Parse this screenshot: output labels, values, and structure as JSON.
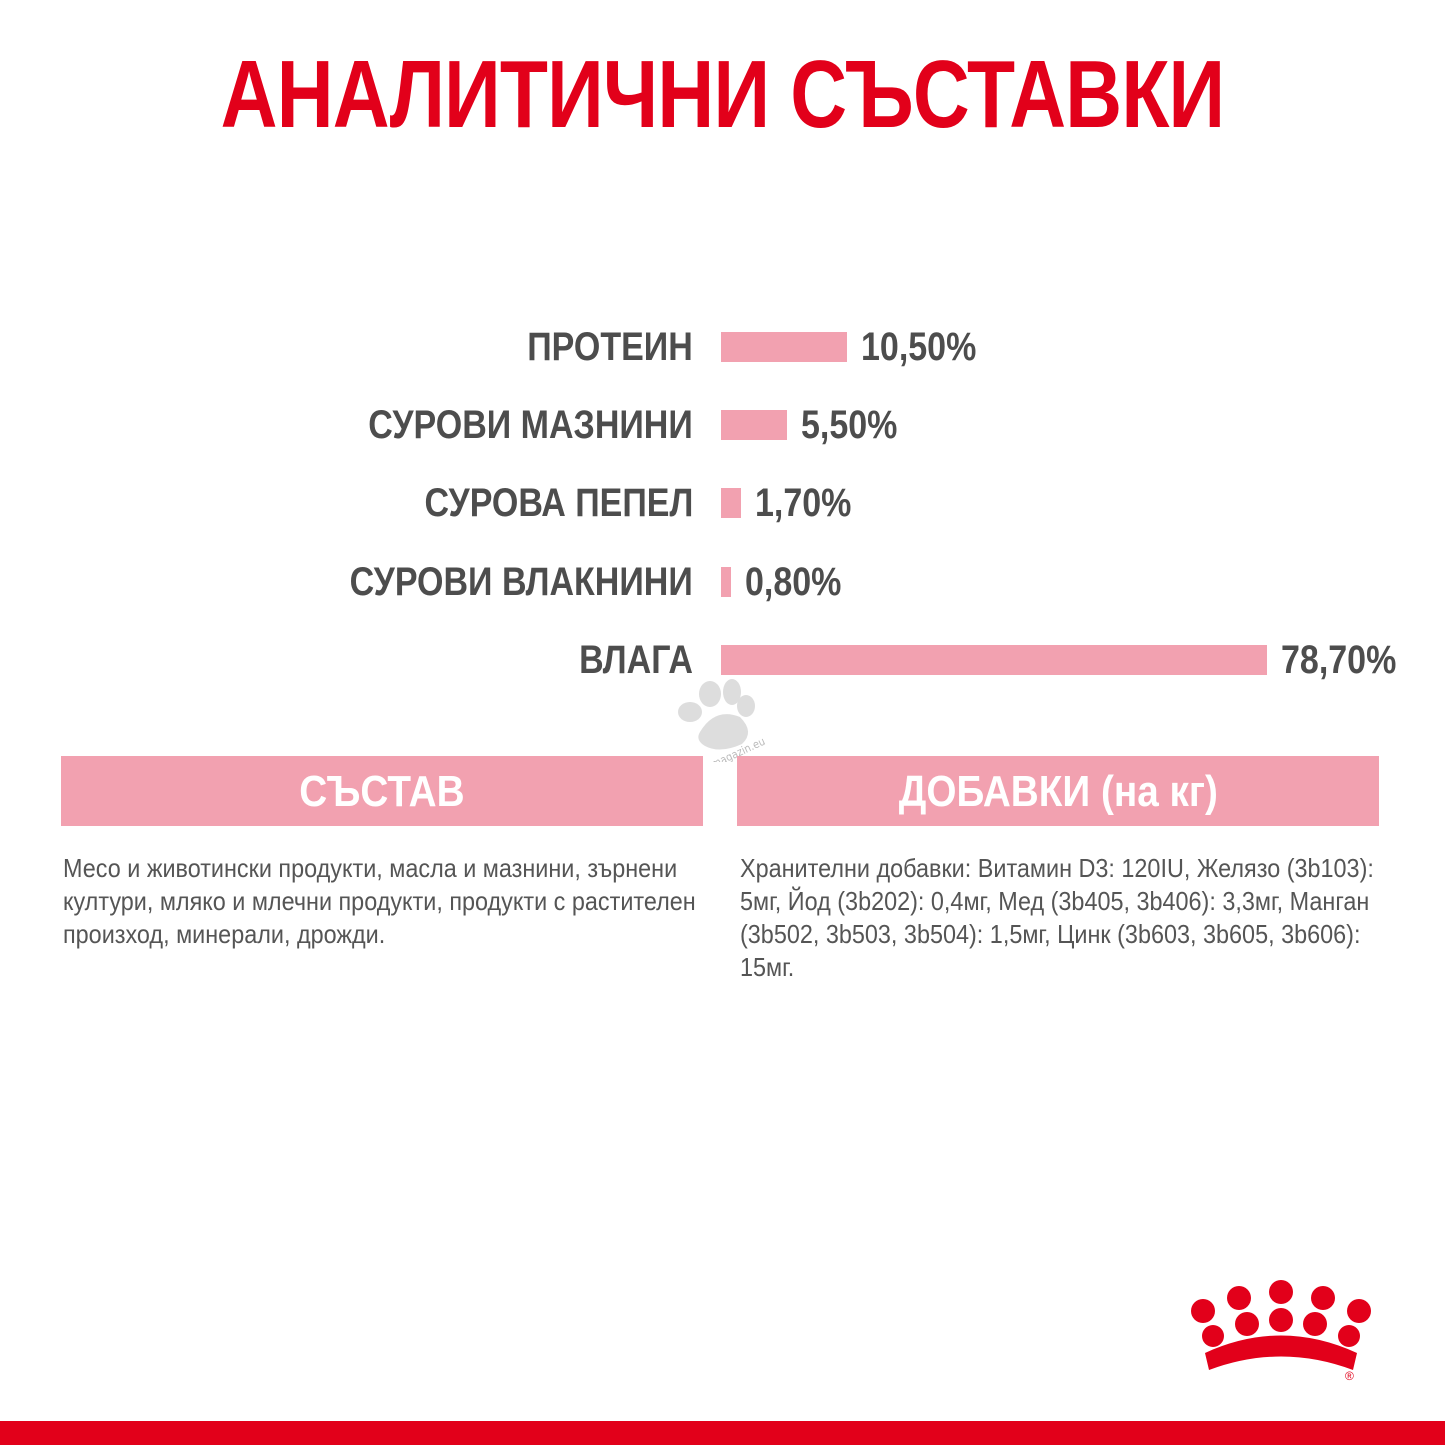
{
  "title": "АНАЛИТИЧНИ СЪСТАВКИ",
  "colors": {
    "brand_red": "#e2001a",
    "bar_pink": "#f2a1b0",
    "text_gray": "#4d4d4d"
  },
  "chart_data": {
    "type": "bar",
    "orientation": "horizontal",
    "categories": [
      "ПРОТЕИН",
      "СУРОВИ МАЗНИНИ",
      "СУРОВА ПЕПЕЛ",
      "СУРОВИ ВЛАКНИНИ",
      "ВЛАГА"
    ],
    "values": [
      10.5,
      5.5,
      1.7,
      0.8,
      78.7
    ],
    "value_labels": [
      "10,50%",
      "5,50%",
      "1,70%",
      "0,80%",
      "78,70%"
    ],
    "unit": "%"
  },
  "composition": {
    "heading": "СЪСТАВ",
    "text": "Месо и животински продукти, масла и мазнини, зърнени култури, мляко и млечни продукти, продукти с растителен произход, минерали, дрожди."
  },
  "additives": {
    "heading": "ДОБАВКИ (на кг)",
    "text": "Хранителни добавки: Витамин D3: 120IU, Желязо (3b103): 5мг, Йод (3b202): 0,4мг, Мед (3b405, 3b406): 3,3мг, Манган (3b502, 3b503, 3b504): 1,5мг, Цинк (3b603, 3b605, 3b606): 15мг."
  },
  "watermark": {
    "text": "zoomagazin.eu",
    "icon": "paw-icon"
  },
  "logo": {
    "icon": "royal-canin-crown-logo",
    "mark": "®"
  }
}
